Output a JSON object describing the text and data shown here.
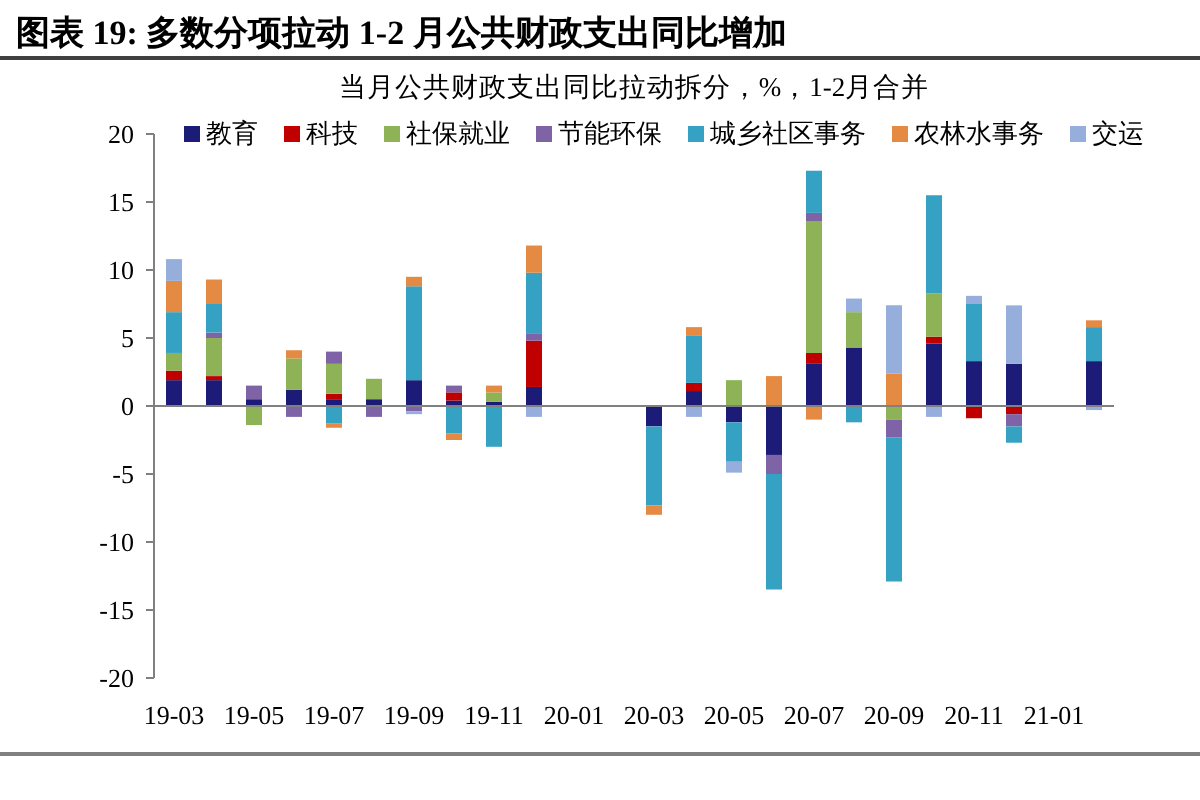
{
  "chart_data": {
    "type": "bar",
    "title": "图表 19: 多数分项拉动 1-2 月公共财政支出同比增加",
    "subtitle": "当月公共财政支出同比拉动拆分，%，1-2月合并",
    "categories": [
      "19-03",
      null,
      "19-05",
      null,
      "19-07",
      null,
      "19-09",
      null,
      "19-11",
      null,
      "20-01",
      null,
      "20-03",
      null,
      "20-05",
      null,
      "20-07",
      null,
      "20-09",
      null,
      "20-11",
      null,
      "21-01",
      null
    ],
    "stacked": true,
    "ylim": [
      -20,
      20
    ],
    "yticks": [
      -20,
      -15,
      -10,
      -5,
      0,
      5,
      10,
      15,
      20
    ],
    "legend": "top",
    "series": [
      {
        "name": "教育",
        "color": "#1c1c78",
        "values": [
          1.9,
          1.9,
          0.5,
          1.2,
          0.5,
          0.5,
          1.9,
          0.4,
          0.3,
          1.4,
          null,
          null,
          -1.5,
          1.1,
          -1.2,
          -3.6,
          3.1,
          4.3,
          null,
          4.6,
          3.3,
          3.1,
          null,
          3.3
        ]
      },
      {
        "name": "科技",
        "color": "#c00000",
        "values": [
          0.7,
          0.3,
          null,
          null,
          0.4,
          null,
          null,
          0.6,
          null,
          3.4,
          null,
          null,
          null,
          0.6,
          null,
          null,
          0.8,
          null,
          null,
          0.5,
          -0.9,
          -0.6,
          null,
          null
        ]
      },
      {
        "name": "社保就业",
        "color": "#8db356",
        "values": [
          1.3,
          2.8,
          -1.4,
          2.3,
          2.2,
          1.5,
          null,
          null,
          0.7,
          null,
          null,
          null,
          null,
          null,
          1.9,
          null,
          9.7,
          2.6,
          -1.0,
          3.2,
          null,
          null,
          null,
          null
        ]
      },
      {
        "name": "节能环保",
        "color": "#7e64a6",
        "values": [
          null,
          0.4,
          1.0,
          -0.8,
          0.9,
          -0.8,
          -0.4,
          0.5,
          null,
          0.5,
          null,
          null,
          null,
          null,
          null,
          -1.4,
          0.6,
          null,
          -1.3,
          null,
          null,
          -0.9,
          null,
          null
        ]
      },
      {
        "name": "城乡社区事务",
        "color": "#35a2c4",
        "values": [
          3.0,
          2.1,
          null,
          null,
          -1.3,
          null,
          6.9,
          -2.0,
          -3.0,
          4.5,
          null,
          null,
          -5.8,
          3.5,
          -2.9,
          -8.5,
          3.1,
          -1.2,
          -10.6,
          7.2,
          4.2,
          -1.2,
          null,
          2.5
        ]
      },
      {
        "name": "农林水事务",
        "color": "#e58a43",
        "values": [
          2.3,
          1.8,
          null,
          0.6,
          -0.3,
          null,
          0.7,
          -0.5,
          0.5,
          2.0,
          null,
          null,
          -0.7,
          0.6,
          null,
          2.2,
          -1.0,
          null,
          2.4,
          null,
          null,
          null,
          null,
          0.5
        ]
      },
      {
        "name": "交运",
        "color": "#95aedb",
        "values": [
          1.6,
          null,
          null,
          null,
          null,
          null,
          -0.2,
          null,
          null,
          -0.8,
          null,
          null,
          null,
          -0.8,
          -0.8,
          null,
          null,
          1.0,
          5.0,
          -0.8,
          0.6,
          4.3,
          null,
          -0.3
        ]
      }
    ]
  }
}
